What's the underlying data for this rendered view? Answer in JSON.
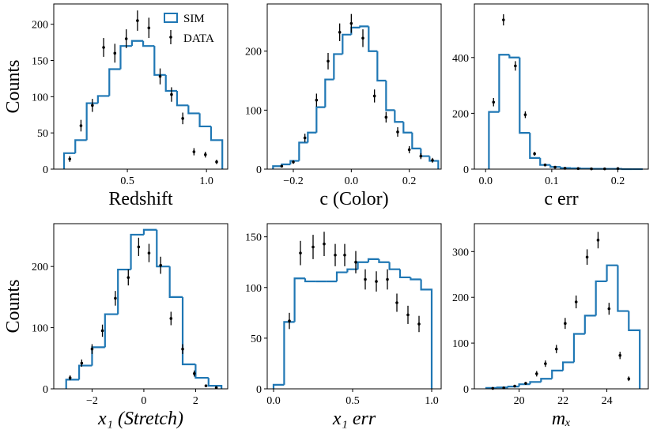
{
  "chart_data": [
    {
      "type": "histogram",
      "xlabel": "Redshift",
      "ylabel": "Counts",
      "legend": "upper right",
      "xlim": [
        0.035,
        1.134
      ],
      "ylim": [
        0,
        228
      ],
      "xticks": [
        0.5,
        {
          "value": 1,
          "label": "1.0"
        }
      ],
      "yticks": [
        0,
        50,
        100,
        150,
        200
      ],
      "sim": {
        "name": "SIM",
        "color": "#1f77b4",
        "bins": [
          0.1,
          0.171,
          0.243,
          0.314,
          0.386,
          0.457,
          0.529,
          0.6,
          0.671,
          0.743,
          0.814,
          0.886,
          0.957,
          1.029,
          1.1
        ],
        "counts": [
          22,
          40,
          91,
          101,
          138,
          170,
          177,
          170,
          130,
          108,
          88,
          77,
          59,
          40
        ]
      },
      "data": {
        "name": "DATA",
        "color": "#000000",
        "x": [
          0.136,
          0.207,
          0.279,
          0.35,
          0.421,
          0.493,
          0.564,
          0.636,
          0.707,
          0.779,
          0.85,
          0.921,
          0.993,
          1.064
        ],
        "y": [
          14,
          60,
          88,
          168,
          160,
          180,
          205,
          195,
          128,
          103,
          70,
          24,
          20,
          10
        ],
        "yerr": [
          4,
          8,
          9,
          13,
          13,
          13,
          14,
          14,
          11,
          10,
          8,
          5,
          4,
          3
        ]
      }
    },
    {
      "type": "histogram",
      "xlabel": "c (Color)",
      "xlim": [
        -0.29,
        0.31
      ],
      "ylim": [
        0,
        280
      ],
      "xticks": [
        {
          "value": -0.2,
          "label": "−0.2"
        },
        {
          "value": 0,
          "label": "0.0"
        },
        0.2
      ],
      "yticks": [
        0,
        100,
        200
      ],
      "sim": {
        "color": "#1f77b4",
        "bins": [
          -0.27,
          -0.24,
          -0.21,
          -0.18,
          -0.15,
          -0.12,
          -0.09,
          -0.06,
          -0.03,
          0,
          0.03,
          0.06,
          0.09,
          0.12,
          0.15,
          0.18,
          0.21,
          0.24,
          0.27,
          0.3
        ],
        "counts": [
          5,
          8,
          14,
          45,
          62,
          105,
          152,
          195,
          228,
          240,
          242,
          200,
          150,
          100,
          80,
          62,
          35,
          22,
          14
        ]
      },
      "data": {
        "color": "#000000",
        "x": [
          -0.24,
          -0.2,
          -0.16,
          -0.12,
          -0.08,
          -0.04,
          0,
          0.04,
          0.08,
          0.12,
          0.16,
          0.2,
          0.24,
          0.28
        ],
        "y": [
          5,
          12,
          53,
          117,
          183,
          232,
          247,
          222,
          124,
          88,
          63,
          33,
          22,
          15
        ],
        "yerr": [
          2,
          3,
          7,
          11,
          14,
          15,
          16,
          15,
          11,
          9,
          8,
          6,
          5,
          4
        ]
      }
    },
    {
      "type": "histogram",
      "xlabel": "c err",
      "xlim": [
        -0.017,
        0.246
      ],
      "ylim": [
        0,
        592
      ],
      "xticks": [
        {
          "value": 0,
          "label": "0.0"
        },
        0.1,
        0.2
      ],
      "yticks": [
        0,
        200,
        400
      ],
      "sim": {
        "color": "#1f77b4",
        "bins": [
          0.005,
          0.0205,
          0.036,
          0.0515,
          0.067,
          0.0825,
          0.098,
          0.1135,
          0.129,
          0.1445,
          0.16,
          0.1755,
          0.191,
          0.2065,
          0.222,
          0.2375
        ],
        "counts": [
          205,
          410,
          400,
          130,
          40,
          15,
          8,
          4,
          3,
          2,
          1,
          1,
          1,
          0,
          0
        ]
      },
      "data": {
        "color": "#000000",
        "x": [
          0.012,
          0.027,
          0.045,
          0.06,
          0.074,
          0.09,
          0.105,
          0.12,
          0.14,
          0.16,
          0.18,
          0.2
        ],
        "y": [
          240,
          535,
          370,
          195,
          55,
          15,
          7,
          3,
          2,
          1,
          1,
          2
        ],
        "yerr": [
          15,
          20,
          17,
          12,
          7,
          4,
          3,
          2,
          1,
          1,
          1,
          1
        ]
      }
    },
    {
      "type": "histogram",
      "xlabel": "x₁ (Stretch)",
      "ylabel": "Counts",
      "xlim": [
        -3.48,
        3.24
      ],
      "ylim": [
        0,
        270
      ],
      "xticks": [
        {
          "value": -2,
          "label": "−2"
        },
        0,
        2
      ],
      "yticks": [
        0,
        100,
        200
      ],
      "sim": {
        "color": "#1f77b4",
        "bins": [
          -3,
          -2.5,
          -2,
          -1.5,
          -1,
          -0.5,
          0,
          0.5,
          1,
          1.5,
          2,
          2.5,
          3
        ],
        "counts": [
          15,
          38,
          68,
          122,
          195,
          252,
          260,
          200,
          150,
          40,
          18,
          5
        ]
      },
      "data": {
        "color": "#000000",
        "x": [
          -2.85,
          -2.4,
          -2,
          -1.6,
          -1.1,
          -0.6,
          -0.2,
          0.2,
          0.65,
          1.05,
          1.5,
          1.95,
          2.4,
          2.8
        ],
        "y": [
          18,
          42,
          65,
          95,
          148,
          182,
          232,
          222,
          202,
          115,
          65,
          25,
          5,
          2
        ],
        "yerr": [
          4,
          6,
          8,
          10,
          12,
          13,
          15,
          15,
          14,
          11,
          8,
          5,
          2,
          1
        ]
      }
    },
    {
      "type": "histogram",
      "xlabel": "x₁ err",
      "xlim": [
        -0.04,
        1.06
      ],
      "ylim": [
        0,
        163
      ],
      "xticks": [
        {
          "value": 0,
          "label": "0.0"
        },
        0.5,
        {
          "value": 1,
          "label": "1.0"
        }
      ],
      "yticks": [
        0,
        50,
        100,
        150
      ],
      "sim": {
        "color": "#1f77b4",
        "bins": [
          0,
          0.067,
          0.133,
          0.2,
          0.267,
          0.333,
          0.4,
          0.467,
          0.533,
          0.6,
          0.667,
          0.733,
          0.8,
          0.867,
          0.933,
          1
        ],
        "counts": [
          4,
          66,
          109,
          106,
          106,
          106,
          115,
          118,
          125,
          128,
          125,
          118,
          110,
          108,
          98
        ]
      },
      "data": {
        "color": "#000000",
        "x": [
          0.1,
          0.17,
          0.25,
          0.32,
          0.39,
          0.45,
          0.52,
          0.58,
          0.65,
          0.72,
          0.78,
          0.85,
          0.92
        ],
        "y": [
          67,
          134,
          140,
          143,
          132,
          132,
          125,
          108,
          106,
          108,
          85,
          73,
          64
        ],
        "yerr": [
          8,
          12,
          12,
          12,
          11,
          11,
          11,
          10,
          10,
          10,
          9,
          9,
          8
        ]
      }
    },
    {
      "type": "histogram",
      "xlabel": "mₓ",
      "xlim": [
        17.96,
        25.89
      ],
      "ylim": [
        0,
        361
      ],
      "xticks": [
        20,
        22,
        24
      ],
      "yticks": [
        0,
        100,
        200,
        300
      ],
      "sim": {
        "color": "#1f77b4",
        "bins": [
          18.5,
          19,
          19.5,
          20,
          20.5,
          21,
          21.5,
          22,
          22.5,
          23,
          23.5,
          24,
          24.5,
          25,
          25.5
        ],
        "counts": [
          2,
          3,
          5,
          10,
          15,
          22,
          40,
          58,
          120,
          160,
          235,
          270,
          170,
          128
        ]
      },
      "data": {
        "color": "#000000",
        "x": [
          18.8,
          19.3,
          19.8,
          20.3,
          20.8,
          21.2,
          21.7,
          22.1,
          22.6,
          23.1,
          23.6,
          24.1,
          24.6,
          25.0
        ],
        "y": [
          1,
          2,
          6,
          12,
          33,
          55,
          87,
          143,
          190,
          288,
          325,
          175,
          73,
          22
        ],
        "yerr": [
          1,
          1,
          2,
          3,
          6,
          7,
          9,
          12,
          14,
          17,
          18,
          13,
          8,
          5
        ]
      }
    }
  ]
}
